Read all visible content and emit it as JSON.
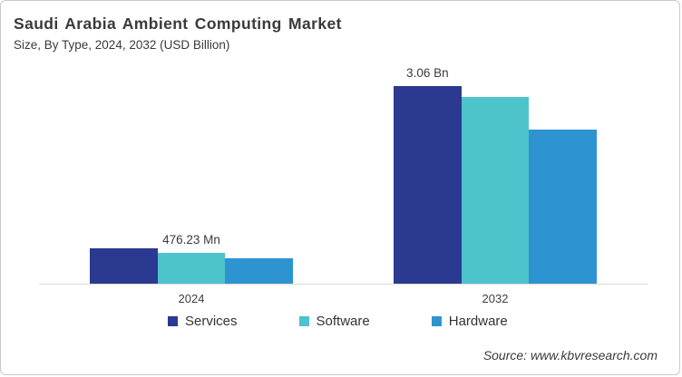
{
  "header": {
    "title": "Saudi Arabia Ambient Computing Market",
    "subtitle": "Size, By Type, 2024, 2032 (USD Billion)"
  },
  "source": "Source: www.kbvresearch.com",
  "colors": {
    "services": "#2B3990",
    "software": "#4DC3CB",
    "hardware": "#2E93D1",
    "axis_line": "#D9D9D9",
    "text": "#3A3A3A",
    "border": "#C9C9C9",
    "background": "#FFFFFF"
  },
  "chart_data": {
    "type": "bar",
    "title": "Saudi Arabia Ambient Computing Market",
    "subtitle": "Size, By Type, 2024, 2032 (USD Billion)",
    "unit": "USD Billion",
    "categories": [
      "2024",
      "2032"
    ],
    "series": [
      {
        "name": "Services",
        "color": "#2B3990",
        "values": [
          0.55,
          3.06
        ]
      },
      {
        "name": "Software",
        "color": "#4DC3CB",
        "values": [
          0.476,
          2.89
        ]
      },
      {
        "name": "Hardware",
        "color": "#2E93D1",
        "values": [
          0.39,
          2.39
        ]
      }
    ],
    "bar_labels": [
      {
        "category": "2024",
        "series": "Software",
        "text": "476.23 Mn"
      },
      {
        "category": "2032",
        "series": "Services",
        "text": "3.06 Bn"
      }
    ],
    "xlabel": "",
    "ylabel": "",
    "ylim": [
      0,
      3.35
    ],
    "grid": false,
    "y_axis_visible": false,
    "legend_position": "bottom"
  }
}
